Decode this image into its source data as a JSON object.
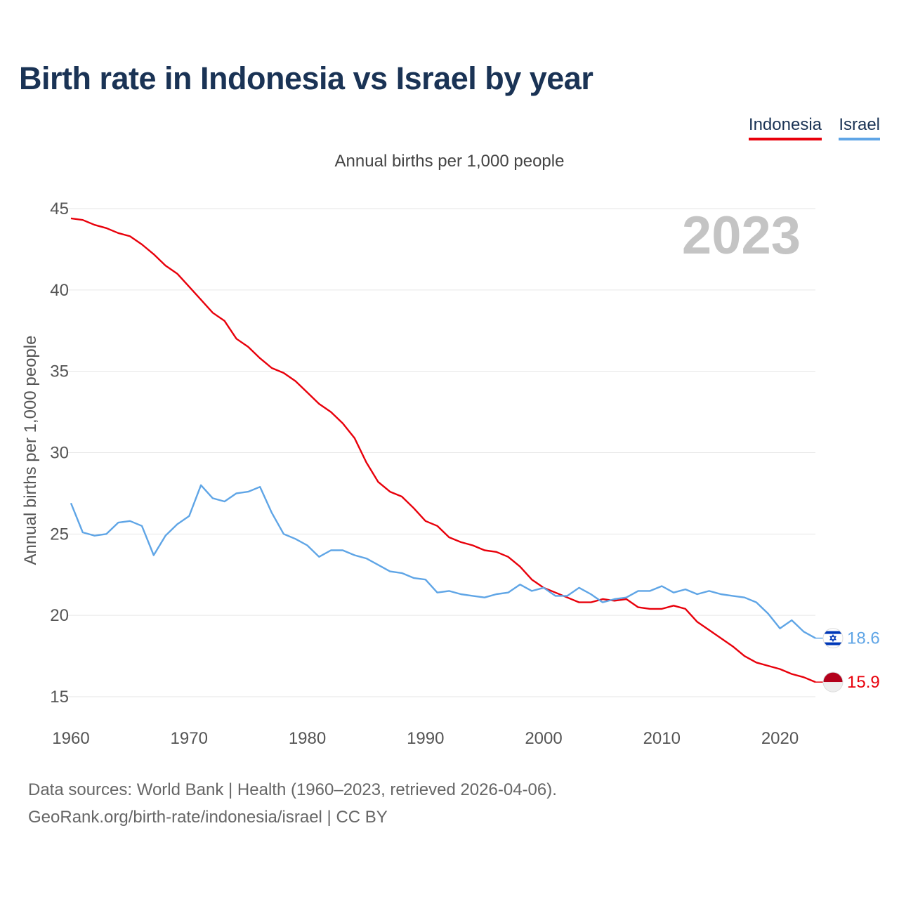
{
  "title": "Birth rate in Indonesia vs Israel by year",
  "subtitle": "Annual births per 1,000 people",
  "watermark_year": "2023",
  "legend": {
    "indonesia": "Indonesia",
    "israel": "Israel"
  },
  "footer": {
    "line1": "Data sources: World Bank | Health (1960–2023, retrieved 2026-04-06).",
    "line2": "GeoRank.org/birth-rate/indonesia/israel | CC BY"
  },
  "colors": {
    "indonesia": "#e8000b",
    "israel": "#5fa5e6",
    "title": "#1a3355",
    "grid": "#e6e6e6"
  },
  "chart_data": {
    "type": "line",
    "title": "Birth rate in Indonesia vs Israel by year",
    "ylabel": "Annual births per 1,000 people",
    "xlabel": "",
    "xlim": [
      1960,
      2023
    ],
    "ylim": [
      15,
      45
    ],
    "yticks": [
      15,
      20,
      25,
      30,
      35,
      40,
      45
    ],
    "xticks": [
      1960,
      1970,
      1980,
      1990,
      2000,
      2010,
      2020
    ],
    "grid": true,
    "legend_position": "top-right",
    "x": [
      1960,
      1961,
      1962,
      1963,
      1964,
      1965,
      1966,
      1967,
      1968,
      1969,
      1970,
      1971,
      1972,
      1973,
      1974,
      1975,
      1976,
      1977,
      1978,
      1979,
      1980,
      1981,
      1982,
      1983,
      1984,
      1985,
      1986,
      1987,
      1988,
      1989,
      1990,
      1991,
      1992,
      1993,
      1994,
      1995,
      1996,
      1997,
      1998,
      1999,
      2000,
      2001,
      2002,
      2003,
      2004,
      2005,
      2006,
      2007,
      2008,
      2009,
      2010,
      2011,
      2012,
      2013,
      2014,
      2015,
      2016,
      2017,
      2018,
      2019,
      2020,
      2021,
      2022,
      2023
    ],
    "series": [
      {
        "name": "Indonesia",
        "key": "indonesia",
        "end_label": "15.9",
        "values": [
          44.4,
          44.3,
          44.0,
          43.8,
          43.5,
          43.3,
          42.8,
          42.2,
          41.5,
          41.0,
          40.2,
          39.4,
          38.6,
          38.1,
          37.0,
          36.5,
          35.8,
          35.2,
          34.9,
          34.4,
          33.7,
          33.0,
          32.5,
          31.8,
          30.9,
          29.4,
          28.2,
          27.6,
          27.3,
          26.6,
          25.8,
          25.5,
          24.8,
          24.5,
          24.3,
          24.0,
          23.9,
          23.6,
          23.0,
          22.2,
          21.7,
          21.4,
          21.1,
          20.8,
          20.8,
          21.0,
          20.9,
          21.0,
          20.5,
          20.4,
          20.4,
          20.6,
          20.4,
          19.6,
          19.1,
          18.6,
          18.1,
          17.5,
          17.1,
          16.9,
          16.7,
          16.4,
          16.2,
          15.9
        ]
      },
      {
        "name": "Israel",
        "key": "israel",
        "end_label": "18.6",
        "values": [
          26.9,
          25.1,
          24.9,
          25.0,
          25.7,
          25.8,
          25.5,
          23.7,
          24.9,
          25.6,
          26.1,
          28.0,
          27.2,
          27.0,
          27.5,
          27.6,
          27.9,
          26.3,
          25.0,
          24.7,
          24.3,
          23.6,
          24.0,
          24.0,
          23.7,
          23.5,
          23.1,
          22.7,
          22.6,
          22.3,
          22.2,
          21.4,
          21.5,
          21.3,
          21.2,
          21.1,
          21.3,
          21.4,
          21.9,
          21.5,
          21.7,
          21.2,
          21.2,
          21.7,
          21.3,
          20.8,
          21.0,
          21.1,
          21.5,
          21.5,
          21.8,
          21.4,
          21.6,
          21.3,
          21.5,
          21.3,
          21.2,
          21.1,
          20.8,
          20.1,
          19.2,
          19.7,
          19.0,
          18.6
        ]
      }
    ]
  }
}
